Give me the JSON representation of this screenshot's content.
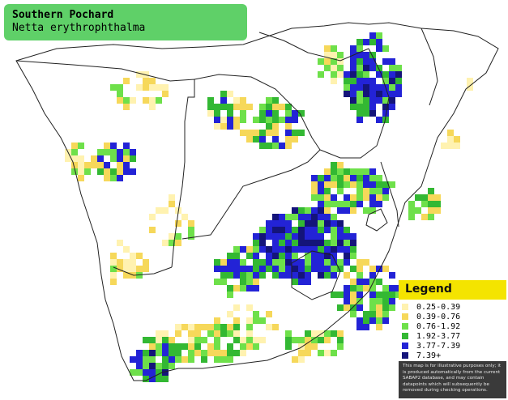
{
  "title": {
    "common_name": "Southern Pochard",
    "scientific_name": "Netta erythrophthalma"
  },
  "legend": {
    "title": "Legend",
    "items": [
      {
        "label": "0.25-0.39",
        "color": "#fff2b0"
      },
      {
        "label": "0.39-0.76",
        "color": "#f6d85a"
      },
      {
        "label": "0.76-1.92",
        "color": "#6ee04a"
      },
      {
        "label": "1.92-3.77",
        "color": "#33b833"
      },
      {
        "label": "3.77-7.39",
        "color": "#2323d6"
      },
      {
        "label": "7.39+",
        "color": "#14147a"
      }
    ],
    "disclaimer": "This map is for illustrative purposes only; it is produced automatically from the current SABAP2 database, and may contain datapoints which will subsequently be removed during checking operations."
  },
  "colors": {
    "title_box": "#5fd068",
    "legend_header": "#f4e400",
    "legend_footer": "#3a3a3a",
    "border_lines": "#222222"
  }
}
